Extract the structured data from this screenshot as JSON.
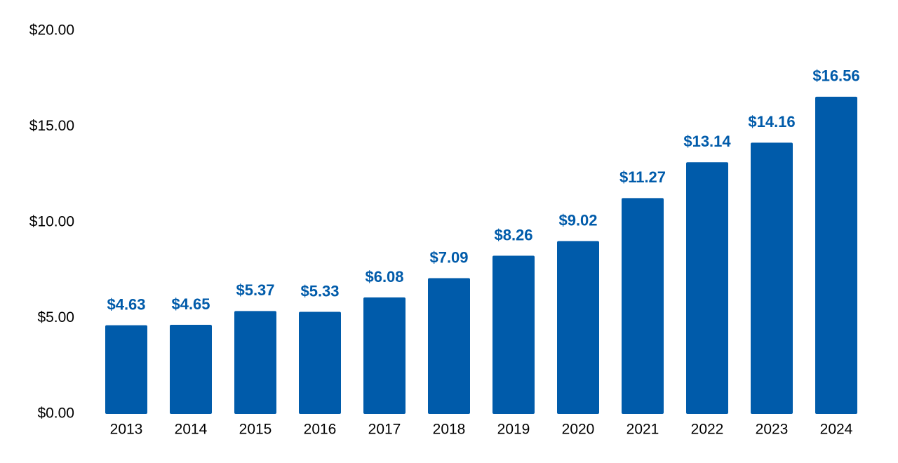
{
  "chart_data": {
    "type": "bar",
    "title": "",
    "xlabel": "",
    "ylabel": "",
    "categories": [
      "2013",
      "2014",
      "2015",
      "2016",
      "2017",
      "2018",
      "2019",
      "2020",
      "2021",
      "2022",
      "2023",
      "2024"
    ],
    "values": [
      4.63,
      4.65,
      5.37,
      5.33,
      6.08,
      7.09,
      8.26,
      9.02,
      11.27,
      13.14,
      14.16,
      16.56
    ],
    "data_labels": [
      "$4.63",
      "$4.65",
      "$5.37",
      "$5.33",
      "$6.08",
      "$7.09",
      "$8.26",
      "$9.02",
      "$11.27",
      "$13.14",
      "$14.16",
      "$16.56"
    ],
    "ylim": [
      0,
      20
    ],
    "y_ticks": [
      0,
      5,
      10,
      15,
      20
    ],
    "y_tick_labels": [
      "$0.00",
      "$5.00",
      "$10.00",
      "$15.00",
      "$20.00"
    ],
    "grid": false,
    "legend": "none",
    "colors": {
      "bar": "#005BAA",
      "data_label": "#005BAA",
      "tick_label": "#000000"
    }
  }
}
